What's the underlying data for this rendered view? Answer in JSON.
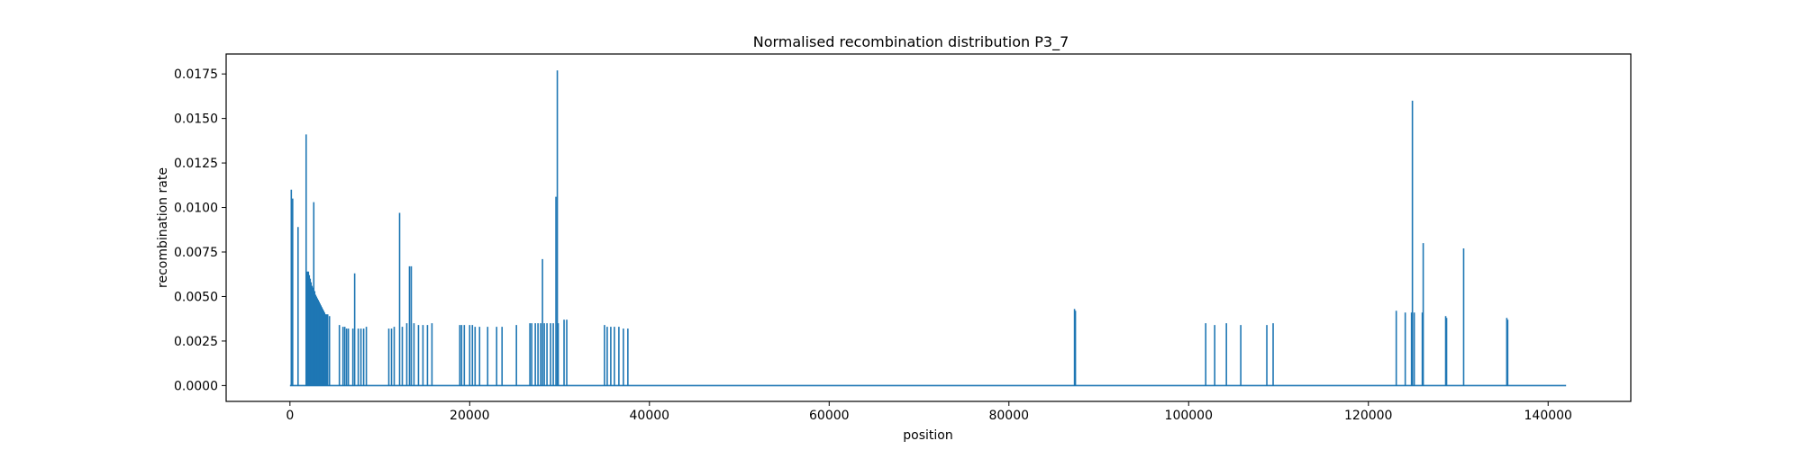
{
  "chart_data": {
    "type": "line",
    "title": "Normalised recombination distribution P3_7",
    "xlabel": "position",
    "ylabel": "recombination rate",
    "xlim": [
      -7100,
      149200
    ],
    "ylim": [
      -0.00089,
      0.01862
    ],
    "xticks": [
      0,
      20000,
      40000,
      60000,
      80000,
      100000,
      120000,
      140000
    ],
    "xtick_labels": [
      "0",
      "20000",
      "40000",
      "60000",
      "80000",
      "100000",
      "120000",
      "140000"
    ],
    "yticks": [
      0.0,
      0.0025,
      0.005,
      0.0075,
      0.01,
      0.0125,
      0.015,
      0.0175
    ],
    "ytick_labels": [
      "0.0000",
      "0.0025",
      "0.0050",
      "0.0075",
      "0.0100",
      "0.0125",
      "0.0150",
      "0.0175"
    ],
    "grid": false,
    "color": "#1f77b4",
    "baseline": {
      "x": [
        0,
        142000
      ],
      "y": 0
    },
    "peaks": {
      "x": [
        150,
        300,
        900,
        1800,
        1950,
        2050,
        2150,
        2250,
        2350,
        2450,
        2550,
        2650,
        2750,
        2850,
        2950,
        3050,
        3150,
        3250,
        3350,
        3450,
        3550,
        3650,
        3750,
        3850,
        3950,
        4050,
        4200,
        4400,
        5500,
        5900,
        6100,
        6300,
        6500,
        7000,
        7200,
        7600,
        7900,
        8200,
        8500,
        11000,
        11300,
        11600,
        12200,
        12500,
        13000,
        13300,
        13500,
        13800,
        14300,
        14800,
        15300,
        15800,
        18900,
        19100,
        19400,
        20000,
        20300,
        20600,
        21100,
        22000,
        23000,
        23600,
        25200,
        26700,
        26900,
        27300,
        27600,
        27900,
        28100,
        28300,
        28600,
        29000,
        29300,
        29600,
        29750,
        29850,
        30500,
        30800,
        35000,
        35300,
        35700,
        36100,
        36600,
        37100,
        37600,
        87300,
        87400,
        101900,
        102900,
        104200,
        105800,
        108700,
        109400,
        123100,
        124100,
        124800,
        124900,
        125100,
        126000,
        126100,
        128600,
        128700,
        130600,
        135400,
        135500
      ],
      "y": [
        0.011,
        0.0105,
        0.0089,
        0.0141,
        0.0064,
        0.0064,
        0.0062,
        0.006,
        0.0058,
        0.0056,
        0.0055,
        0.0103,
        0.0053,
        0.0051,
        0.005,
        0.0049,
        0.0048,
        0.0047,
        0.0046,
        0.0045,
        0.0044,
        0.0043,
        0.0042,
        0.0041,
        0.004,
        0.004,
        0.004,
        0.0039,
        0.0034,
        0.0033,
        0.0033,
        0.0032,
        0.0032,
        0.0032,
        0.0063,
        0.0032,
        0.0032,
        0.0032,
        0.0033,
        0.0032,
        0.0032,
        0.0033,
        0.0097,
        0.0033,
        0.0035,
        0.0067,
        0.0067,
        0.0035,
        0.0034,
        0.0034,
        0.0034,
        0.0035,
        0.0034,
        0.0034,
        0.0034,
        0.0034,
        0.0034,
        0.0033,
        0.0033,
        0.0033,
        0.0033,
        0.0033,
        0.0034,
        0.0035,
        0.0035,
        0.0035,
        0.0035,
        0.0035,
        0.0071,
        0.0035,
        0.0035,
        0.0035,
        0.0035,
        0.0106,
        0.0177,
        0.0035,
        0.0037,
        0.0037,
        0.0034,
        0.0033,
        0.0033,
        0.0033,
        0.0033,
        0.0032,
        0.0032,
        0.0043,
        0.0042,
        0.0035,
        0.0034,
        0.0035,
        0.0034,
        0.0034,
        0.0035,
        0.0042,
        0.0041,
        0.0041,
        0.016,
        0.0041,
        0.0041,
        0.008,
        0.0039,
        0.0038,
        0.0077,
        0.0038,
        0.0037
      ]
    }
  }
}
